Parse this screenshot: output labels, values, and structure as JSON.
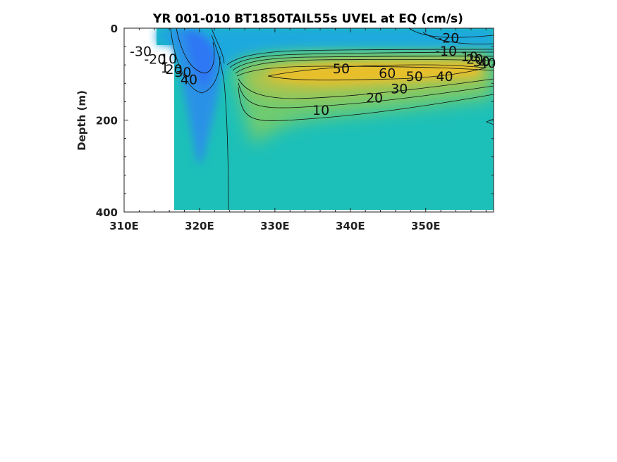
{
  "chart_data": {
    "type": "contour",
    "title": "YR 001-010 BT1850TAIL55s UVEL at EQ (cm/s)",
    "xlabel": "",
    "ylabel": "Depth (m)",
    "xlim": [
      310,
      359
    ],
    "ylim": [
      0,
      400
    ],
    "y_reversed": true,
    "x_ticks": [
      {
        "value": 310,
        "label": "310E"
      },
      {
        "value": 320,
        "label": "320E"
      },
      {
        "value": 330,
        "label": "330E"
      },
      {
        "value": 340,
        "label": "340E"
      },
      {
        "value": 350,
        "label": "350E"
      }
    ],
    "y_ticks": [
      {
        "value": 0,
        "label": "0"
      },
      {
        "value": 200,
        "label": "200"
      },
      {
        "value": 400,
        "label": "400"
      }
    ],
    "colormap": [
      "#3e26a8",
      "#2c72fc",
      "#1caadf",
      "#23c0b4",
      "#7bcc6b",
      "#d8ba32",
      "#f9d528"
    ],
    "contour_labels": [
      {
        "text": "-30",
        "lon": 312.2,
        "depth": 50
      },
      {
        "text": "-20",
        "lon": 314.1,
        "depth": 67
      },
      {
        "text": "10",
        "lon": 315.9,
        "depth": 66
      },
      {
        "text": "1",
        "lon": 315.4,
        "depth": 86
      },
      {
        "text": "20",
        "lon": 316.6,
        "depth": 89
      },
      {
        "text": "30",
        "lon": 317.8,
        "depth": 95
      },
      {
        "text": "40",
        "lon": 318.6,
        "depth": 111
      },
      {
        "text": "-20",
        "lon": 353.0,
        "depth": 21
      },
      {
        "text": "-10",
        "lon": 352.7,
        "depth": 49
      },
      {
        "text": "10",
        "lon": 355.8,
        "depth": 61
      },
      {
        "text": "20",
        "lon": 356.5,
        "depth": 67
      },
      {
        "text": "30",
        "lon": 357.4,
        "depth": 72
      },
      {
        "text": "40",
        "lon": 358.2,
        "depth": 75
      },
      {
        "text": "50",
        "lon": 338.8,
        "depth": 87
      },
      {
        "text": "60",
        "lon": 344.9,
        "depth": 97
      },
      {
        "text": "50",
        "lon": 348.5,
        "depth": 104
      },
      {
        "text": "40",
        "lon": 352.5,
        "depth": 104
      },
      {
        "text": "30",
        "lon": 346.5,
        "depth": 131
      },
      {
        "text": "20",
        "lon": 343.2,
        "depth": 151
      },
      {
        "text": "10",
        "lon": 336.1,
        "depth": 178
      }
    ]
  }
}
